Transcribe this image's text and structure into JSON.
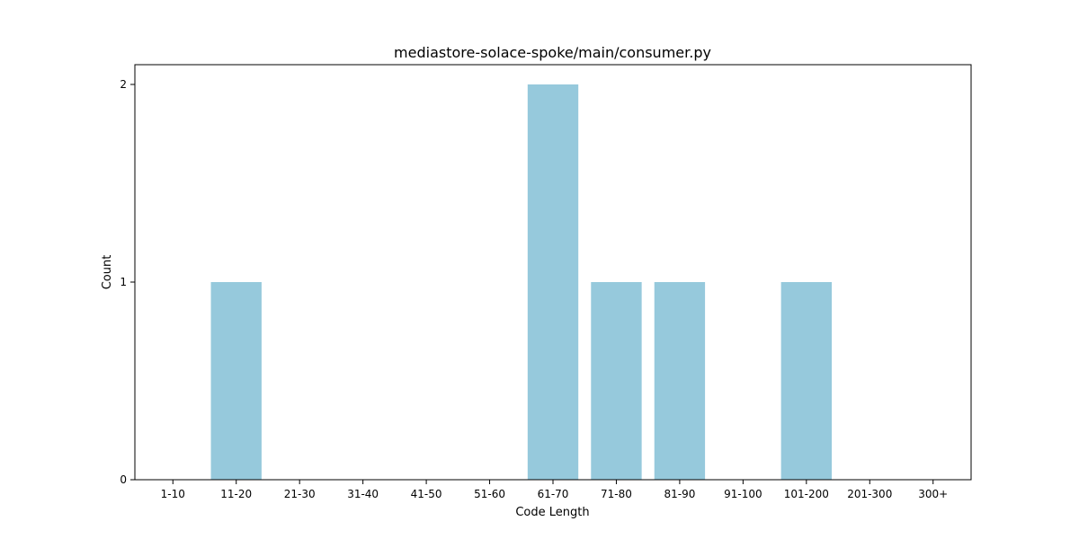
{
  "chart_data": {
    "type": "bar",
    "title": "mediastore-solace-spoke/main/consumer.py",
    "xlabel": "Code Length",
    "ylabel": "Count",
    "categories": [
      "1-10",
      "11-20",
      "21-30",
      "31-40",
      "41-50",
      "51-60",
      "61-70",
      "71-80",
      "81-90",
      "91-100",
      "101-200",
      "201-300",
      "300+"
    ],
    "values": [
      0,
      1,
      0,
      0,
      0,
      0,
      2,
      1,
      1,
      0,
      1,
      0,
      0
    ],
    "ylim": [
      0,
      2.1
    ],
    "yticks": [
      0,
      1,
      2
    ],
    "grid": false,
    "bar_color": "#96c9dc"
  }
}
